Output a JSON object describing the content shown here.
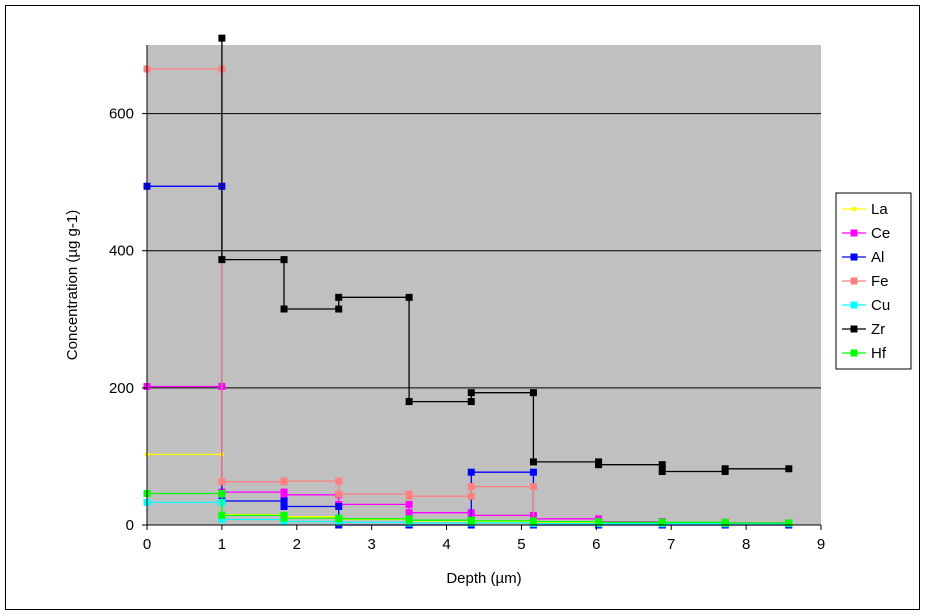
{
  "chart_data": {
    "type": "line",
    "title": "",
    "xlabel": "Depth (µm)",
    "ylabel": "Concentration (µg g-1)",
    "xlim": [
      0,
      9
    ],
    "ylim": [
      0,
      700
    ],
    "x_ticks": [
      0,
      1,
      2,
      3,
      4,
      5,
      6,
      7,
      8,
      9
    ],
    "y_ticks": [
      0,
      200,
      400,
      600
    ],
    "grid": "horizontal major gridlines",
    "legend_position": "right",
    "plot_background": "#c0c0c0",
    "series": [
      {
        "name": "La",
        "color": "#ffff00",
        "marker": "small",
        "points": [
          [
            0,
            103
          ],
          [
            1,
            103
          ],
          [
            1,
            15
          ],
          [
            1.83,
            15
          ],
          [
            1.83,
            12
          ],
          [
            2.56,
            12
          ],
          [
            2.56,
            8
          ],
          [
            3.5,
            8
          ],
          [
            3.5,
            6
          ],
          [
            4.33,
            6
          ],
          [
            4.33,
            5
          ],
          [
            5.16,
            5
          ],
          [
            5.16,
            4
          ],
          [
            6.03,
            4
          ],
          [
            6.03,
            3
          ],
          [
            6.88,
            3
          ],
          [
            6.88,
            3
          ],
          [
            7.72,
            3
          ],
          [
            7.72,
            2
          ],
          [
            8.57,
            2
          ]
        ]
      },
      {
        "name": "Ce",
        "color": "#ff00ff",
        "marker": "square",
        "points": [
          [
            0,
            202
          ],
          [
            1,
            202
          ],
          [
            1,
            48
          ],
          [
            1.83,
            48
          ],
          [
            1.83,
            44
          ],
          [
            2.56,
            44
          ],
          [
            2.56,
            30
          ],
          [
            3.5,
            30
          ],
          [
            3.5,
            18
          ],
          [
            4.33,
            18
          ],
          [
            4.33,
            14
          ],
          [
            5.16,
            14
          ],
          [
            5.16,
            9
          ],
          [
            6.03,
            9
          ],
          [
            6.03,
            5
          ],
          [
            6.88,
            5
          ],
          [
            6.88,
            4
          ],
          [
            7.72,
            4
          ],
          [
            7.72,
            3
          ],
          [
            8.57,
            3
          ]
        ]
      },
      {
        "name": "Al",
        "color": "#0000ff",
        "marker": "square",
        "points": [
          [
            0,
            494
          ],
          [
            1,
            494
          ],
          [
            1,
            35
          ],
          [
            1.83,
            35
          ],
          [
            1.83,
            27
          ],
          [
            2.56,
            27
          ],
          [
            2.56,
            0
          ],
          [
            3.5,
            0
          ],
          [
            3.5,
            0
          ],
          [
            4.33,
            0
          ],
          [
            4.33,
            77
          ],
          [
            5.16,
            77
          ],
          [
            5.16,
            0
          ],
          [
            6.03,
            0
          ],
          [
            6.03,
            0
          ],
          [
            6.88,
            0
          ],
          [
            6.88,
            0
          ],
          [
            7.72,
            0
          ],
          [
            7.72,
            0
          ],
          [
            8.57,
            0
          ]
        ]
      },
      {
        "name": "Fe",
        "color": "#ff8080",
        "marker": "square",
        "points": [
          [
            0,
            665
          ],
          [
            1,
            665
          ],
          [
            1,
            63
          ],
          [
            1.83,
            63
          ],
          [
            1.83,
            64
          ],
          [
            2.56,
            64
          ],
          [
            2.56,
            45
          ],
          [
            3.5,
            45
          ],
          [
            3.5,
            42
          ],
          [
            4.33,
            42
          ],
          [
            4.33,
            56
          ],
          [
            5.16,
            56
          ],
          [
            5.16,
            5
          ],
          [
            6.03,
            5
          ],
          [
            6.03,
            4
          ],
          [
            6.88,
            4
          ],
          [
            6.88,
            4
          ],
          [
            7.72,
            4
          ],
          [
            7.72,
            3
          ],
          [
            8.57,
            3
          ]
        ]
      },
      {
        "name": "Cu",
        "color": "#00ffff",
        "marker": "square",
        "points": [
          [
            0,
            33
          ],
          [
            1,
            33
          ],
          [
            1,
            8
          ],
          [
            1.83,
            8
          ],
          [
            1.83,
            5
          ],
          [
            2.56,
            5
          ],
          [
            2.56,
            4
          ],
          [
            3.5,
            4
          ],
          [
            3.5,
            3
          ],
          [
            4.33,
            3
          ],
          [
            4.33,
            3
          ],
          [
            5.16,
            3
          ],
          [
            5.16,
            2
          ],
          [
            6.03,
            2
          ],
          [
            6.03,
            2
          ],
          [
            6.88,
            2
          ],
          [
            6.88,
            2
          ],
          [
            7.72,
            2
          ],
          [
            7.72,
            2
          ],
          [
            8.57,
            2
          ]
        ]
      },
      {
        "name": "Zr",
        "color": "#000000",
        "marker": "square",
        "points": [
          [
            1,
            710
          ],
          [
            1,
            387
          ],
          [
            1.83,
            387
          ],
          [
            1.83,
            315
          ],
          [
            2.56,
            315
          ],
          [
            2.56,
            332
          ],
          [
            3.5,
            332
          ],
          [
            3.5,
            180
          ],
          [
            4.33,
            180
          ],
          [
            4.33,
            193
          ],
          [
            5.16,
            193
          ],
          [
            5.16,
            92
          ],
          [
            6.03,
            92
          ],
          [
            6.03,
            88
          ],
          [
            6.88,
            88
          ],
          [
            6.88,
            78
          ],
          [
            7.72,
            78
          ],
          [
            7.72,
            82
          ],
          [
            8.57,
            82
          ]
        ]
      },
      {
        "name": "Hf",
        "color": "#00ff00",
        "marker": "square",
        "points": [
          [
            0,
            46
          ],
          [
            1,
            46
          ],
          [
            1,
            14
          ],
          [
            1.83,
            14
          ],
          [
            1.83,
            10
          ],
          [
            2.56,
            10
          ],
          [
            2.56,
            9
          ],
          [
            3.5,
            9
          ],
          [
            3.5,
            7
          ],
          [
            4.33,
            7
          ],
          [
            4.33,
            6
          ],
          [
            5.16,
            6
          ],
          [
            5.16,
            5
          ],
          [
            6.03,
            5
          ],
          [
            6.03,
            4
          ],
          [
            6.88,
            4
          ],
          [
            6.88,
            4
          ],
          [
            7.72,
            4
          ],
          [
            7.72,
            3
          ],
          [
            8.57,
            3
          ]
        ]
      }
    ]
  }
}
